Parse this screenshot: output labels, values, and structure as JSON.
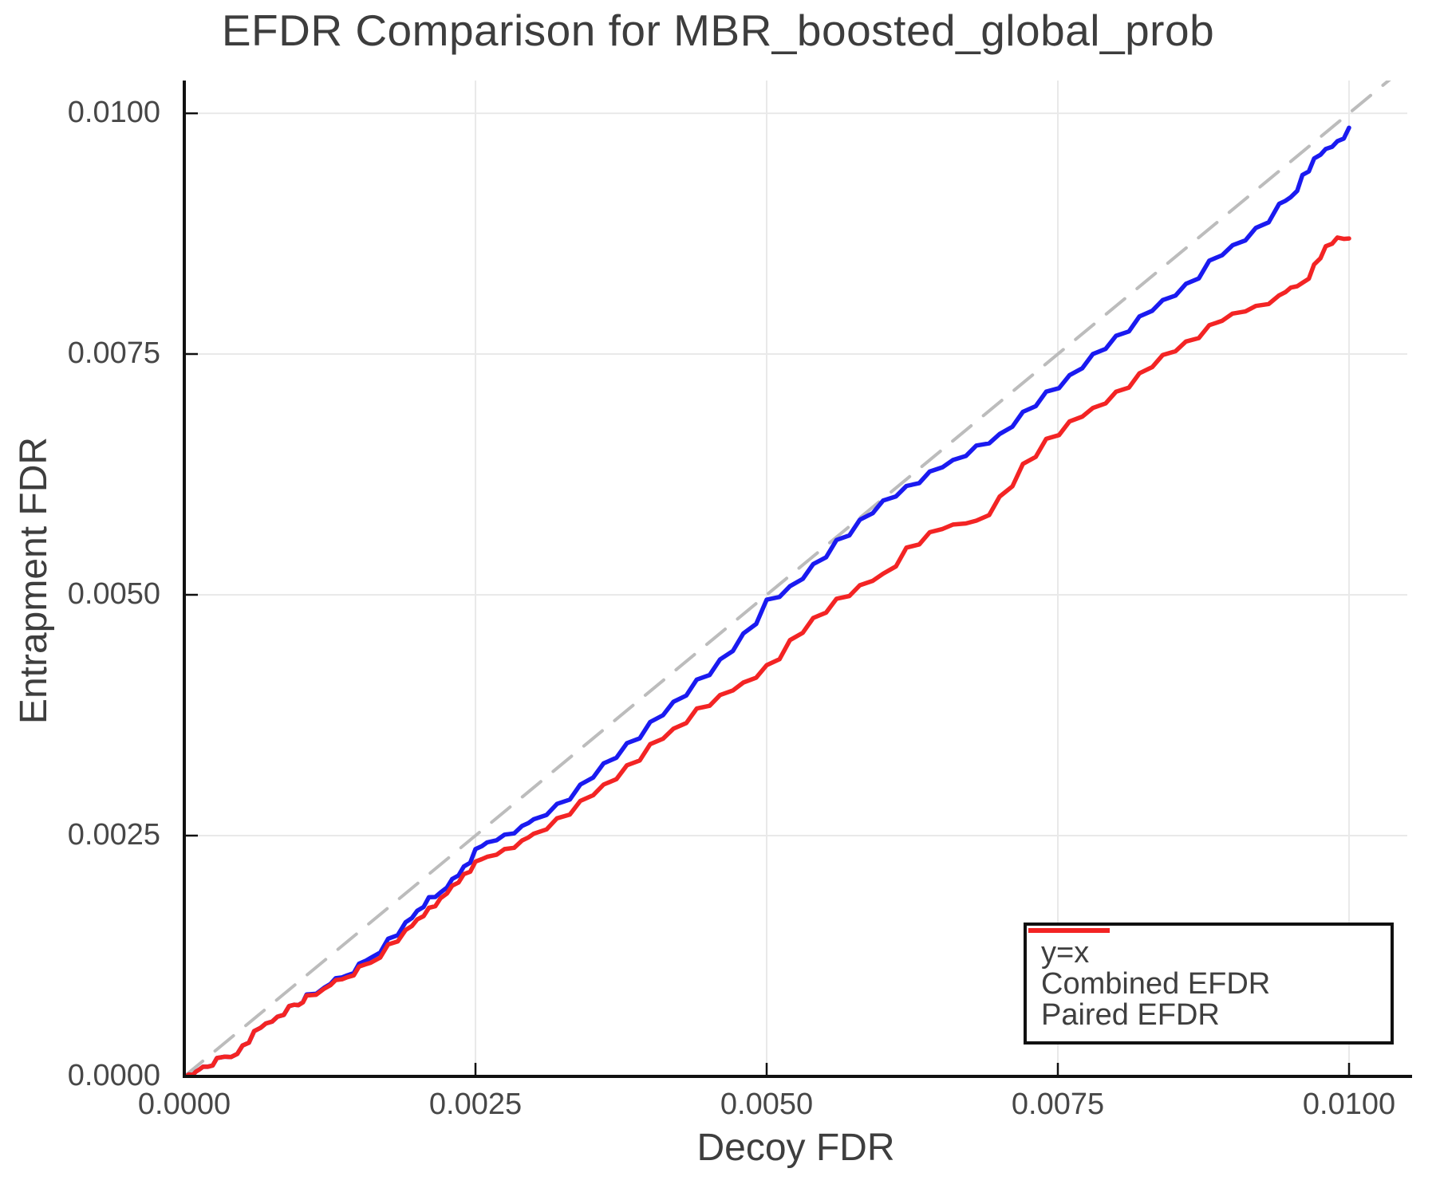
{
  "chart_data": {
    "type": "line",
    "title": "EFDR Comparison for MBR_boosted_global_prob",
    "xlabel": "Decoy FDR",
    "ylabel": "Entrapment FDR",
    "xlim": [
      0,
      0.0105
    ],
    "ylim": [
      0,
      0.01034
    ],
    "grid": true,
    "grid_color": "#e9e9e9",
    "spine_color": "#111111",
    "x_ticks": {
      "values": [
        0,
        0.0025,
        0.005,
        0.0075,
        0.01
      ],
      "labels": [
        "0.0000",
        "0.0025",
        "0.0050",
        "0.0075",
        "0.0100"
      ]
    },
    "y_ticks": {
      "values": [
        0,
        0.0025,
        0.005,
        0.0075,
        0.01
      ],
      "labels": [
        "0.0000",
        "0.0025",
        "0.0050",
        "0.0075",
        "0.0100"
      ]
    },
    "legend": {
      "position": "lower right"
    },
    "series": [
      {
        "name": "y=x",
        "color": "#bcbcbc",
        "dashed": true,
        "width": 4,
        "points": [
          [
            0,
            0
          ],
          [
            0.0104,
            0.0104
          ]
        ]
      },
      {
        "name": "Combined EFDR",
        "color": "#1a1af0",
        "dashed": false,
        "width": 5.5,
        "points": [
          [
            0,
            0
          ],
          [
            4e-05,
            2e-05
          ],
          [
            0.0001,
            5e-05
          ],
          [
            0.00016,
            0.0001
          ],
          [
            0.0002,
            0.0001
          ],
          [
            0.00028,
            0.00019
          ],
          [
            0.0004,
            0.0002
          ],
          [
            0.0005,
            0.00032
          ],
          [
            0.0006,
            0.00047
          ],
          [
            0.0007,
            0.00055
          ],
          [
            0.0008,
            0.00062
          ],
          [
            0.0009,
            0.00073
          ],
          [
            0.00098,
            0.00074
          ],
          [
            0.00105,
            0.00085
          ],
          [
            0.0012,
            0.00092
          ],
          [
            0.0013,
            0.00102
          ],
          [
            0.0014,
            0.00105
          ],
          [
            0.0015,
            0.00117
          ],
          [
            0.0016,
            0.00123
          ],
          [
            0.00175,
            0.00143
          ],
          [
            0.0019,
            0.0016
          ],
          [
            0.002,
            0.00172
          ],
          [
            0.0021,
            0.00186
          ],
          [
            0.0022,
            0.00191
          ],
          [
            0.0023,
            0.00205
          ],
          [
            0.0024,
            0.00218
          ],
          [
            0.0025,
            0.00236
          ],
          [
            0.0026,
            0.00243
          ],
          [
            0.00275,
            0.00251
          ],
          [
            0.0029,
            0.0026
          ],
          [
            0.003,
            0.00267
          ],
          [
            0.0032,
            0.00283
          ],
          [
            0.0034,
            0.00303
          ],
          [
            0.0036,
            0.00325
          ],
          [
            0.0038,
            0.00346
          ],
          [
            0.004,
            0.00368
          ],
          [
            0.0042,
            0.00389
          ],
          [
            0.0044,
            0.00412
          ],
          [
            0.0046,
            0.00433
          ],
          [
            0.0048,
            0.0046
          ],
          [
            0.005,
            0.00495
          ],
          [
            0.0052,
            0.00509
          ],
          [
            0.0054,
            0.00532
          ],
          [
            0.0056,
            0.00557
          ],
          [
            0.0058,
            0.00578
          ],
          [
            0.006,
            0.00598
          ],
          [
            0.0062,
            0.00613
          ],
          [
            0.0064,
            0.00628
          ],
          [
            0.0066,
            0.0064
          ],
          [
            0.0068,
            0.00655
          ],
          [
            0.007,
            0.00667
          ],
          [
            0.0072,
            0.0069
          ],
          [
            0.0074,
            0.00711
          ],
          [
            0.0076,
            0.00728
          ],
          [
            0.0078,
            0.0075
          ],
          [
            0.008,
            0.00769
          ],
          [
            0.0082,
            0.00789
          ],
          [
            0.0084,
            0.00806
          ],
          [
            0.0086,
            0.00823
          ],
          [
            0.0088,
            0.00847
          ],
          [
            0.009,
            0.00863
          ],
          [
            0.0092,
            0.00881
          ],
          [
            0.0094,
            0.00906
          ],
          [
            0.0095,
            0.00913
          ],
          [
            0.0096,
            0.00936
          ],
          [
            0.0097,
            0.00953
          ],
          [
            0.0098,
            0.00963
          ],
          [
            0.0099,
            0.00971
          ],
          [
            0.01,
            0.00985
          ]
        ]
      },
      {
        "name": "Paired EFDR",
        "color": "#f32424",
        "dashed": false,
        "width": 5.5,
        "points": [
          [
            0,
            0
          ],
          [
            4e-05,
            2e-05
          ],
          [
            0.0001,
            5e-05
          ],
          [
            0.00016,
            0.0001
          ],
          [
            0.0002,
            0.0001
          ],
          [
            0.00028,
            0.00019
          ],
          [
            0.0004,
            0.0002
          ],
          [
            0.0005,
            0.00032
          ],
          [
            0.0006,
            0.00047
          ],
          [
            0.0007,
            0.00055
          ],
          [
            0.0008,
            0.00062
          ],
          [
            0.0009,
            0.00073
          ],
          [
            0.00098,
            0.00074
          ],
          [
            0.00105,
            0.00084
          ],
          [
            0.0012,
            0.00091
          ],
          [
            0.0013,
            0.001
          ],
          [
            0.0014,
            0.00103
          ],
          [
            0.0015,
            0.00114
          ],
          [
            0.0016,
            0.00118
          ],
          [
            0.00175,
            0.00137
          ],
          [
            0.0019,
            0.00152
          ],
          [
            0.002,
            0.00163
          ],
          [
            0.0021,
            0.00175
          ],
          [
            0.0022,
            0.00185
          ],
          [
            0.0023,
            0.00198
          ],
          [
            0.0024,
            0.0021
          ],
          [
            0.0025,
            0.00223
          ],
          [
            0.0026,
            0.00228
          ],
          [
            0.00275,
            0.00236
          ],
          [
            0.0029,
            0.00245
          ],
          [
            0.003,
            0.00252
          ],
          [
            0.0032,
            0.00268
          ],
          [
            0.0034,
            0.00286
          ],
          [
            0.0036,
            0.00303
          ],
          [
            0.0038,
            0.00323
          ],
          [
            0.004,
            0.00345
          ],
          [
            0.0042,
            0.00361
          ],
          [
            0.0044,
            0.00382
          ],
          [
            0.0046,
            0.00396
          ],
          [
            0.0048,
            0.00409
          ],
          [
            0.005,
            0.00427
          ],
          [
            0.0052,
            0.00453
          ],
          [
            0.0054,
            0.00476
          ],
          [
            0.0056,
            0.00496
          ],
          [
            0.0058,
            0.0051
          ],
          [
            0.006,
            0.00522
          ],
          [
            0.0062,
            0.00549
          ],
          [
            0.0064,
            0.00565
          ],
          [
            0.0066,
            0.00573
          ],
          [
            0.0068,
            0.00577
          ],
          [
            0.007,
            0.00602
          ],
          [
            0.0072,
            0.00636
          ],
          [
            0.0074,
            0.00662
          ],
          [
            0.0076,
            0.0068
          ],
          [
            0.0078,
            0.00694
          ],
          [
            0.008,
            0.00711
          ],
          [
            0.0082,
            0.0073
          ],
          [
            0.0084,
            0.00749
          ],
          [
            0.0086,
            0.00763
          ],
          [
            0.0088,
            0.0078
          ],
          [
            0.009,
            0.00792
          ],
          [
            0.0092,
            0.008
          ],
          [
            0.0094,
            0.00811
          ],
          [
            0.0095,
            0.00819
          ],
          [
            0.0096,
            0.00824
          ],
          [
            0.0097,
            0.00843
          ],
          [
            0.0098,
            0.00862
          ],
          [
            0.0099,
            0.00871
          ],
          [
            0.01,
            0.0087
          ]
        ]
      }
    ]
  }
}
